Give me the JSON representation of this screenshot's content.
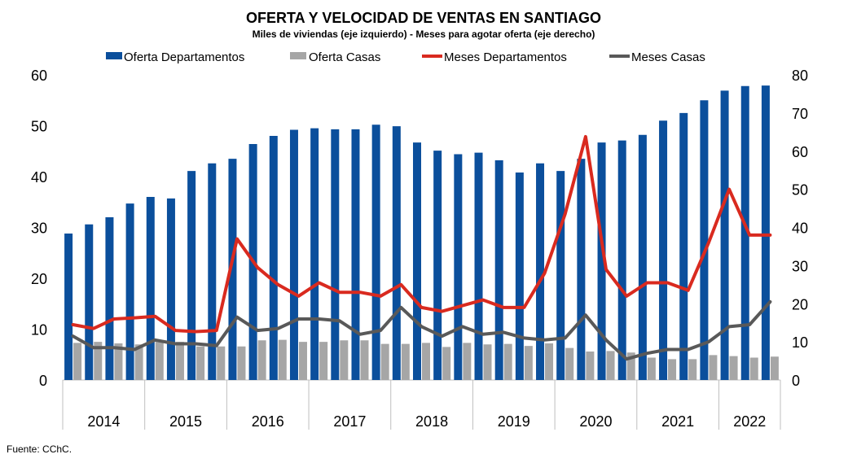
{
  "chart_data": {
    "type": "bar",
    "title": "OFERTA Y VELOCIDAD DE VENTAS EN SANTIAGO",
    "subtitle": "Miles de viviendas (eje izquierdo) - Meses para agotar oferta (eje derecho)",
    "source": "Fuente: CChC.",
    "colors": {
      "oferta_departamentos": "#0b4f9c",
      "oferta_casas": "#a6a6a6",
      "meses_departamentos": "#d92a1f",
      "meses_casas": "#595959"
    },
    "y_left": {
      "min": 0,
      "max": 60,
      "ticks": [
        "0",
        "10",
        "20",
        "30",
        "40",
        "50",
        "60"
      ]
    },
    "y_right": {
      "min": 0,
      "max": 80,
      "ticks": [
        "0",
        "10",
        "20",
        "30",
        "40",
        "50",
        "60",
        "70",
        "80"
      ]
    },
    "years": [
      {
        "label": "2014",
        "quarters": 4
      },
      {
        "label": "2015",
        "quarters": 4
      },
      {
        "label": "2016",
        "quarters": 4
      },
      {
        "label": "2017",
        "quarters": 4
      },
      {
        "label": "2018",
        "quarters": 4
      },
      {
        "label": "2019",
        "quarters": 4
      },
      {
        "label": "2020",
        "quarters": 4
      },
      {
        "label": "2021",
        "quarters": 4
      },
      {
        "label": "2022",
        "quarters": 3
      }
    ],
    "legend_position": "top",
    "grid": false,
    "series": [
      {
        "name": "Oferta Departamentos",
        "type": "bar",
        "axis": "left",
        "values": [
          28.8,
          30.6,
          32.0,
          34.7,
          36.0,
          35.7,
          41.1,
          42.6,
          43.5,
          46.4,
          48.0,
          49.2,
          49.5,
          49.3,
          49.3,
          50.2,
          49.9,
          46.7,
          45.1,
          44.4,
          44.7,
          43.2,
          40.8,
          42.6,
          41.1,
          43.5,
          46.7,
          47.1,
          48.2,
          51.0,
          52.5,
          55.0,
          56.9,
          57.8,
          57.9
        ]
      },
      {
        "name": "Oferta Casas",
        "type": "bar",
        "axis": "left",
        "values": [
          7.3,
          7.5,
          7.2,
          7.0,
          7.5,
          7.5,
          6.6,
          6.6,
          6.6,
          7.8,
          7.9,
          7.5,
          7.5,
          7.8,
          7.8,
          7.1,
          7.1,
          7.3,
          6.5,
          7.3,
          7.0,
          7.1,
          6.7,
          7.2,
          6.3,
          5.6,
          5.7,
          5.4,
          4.4,
          4.1,
          4.1,
          4.9,
          4.7,
          4.4,
          4.6
        ]
      },
      {
        "name": "Meses Departamentos",
        "type": "line",
        "axis": "right",
        "values": [
          14.5,
          13.5,
          16.0,
          16.3,
          16.7,
          13.0,
          12.7,
          13.0,
          37.0,
          29.5,
          25.0,
          22.0,
          25.5,
          23.0,
          23.0,
          22.0,
          25.0,
          19.0,
          18.0,
          19.5,
          21.0,
          19.0,
          19.0,
          28.0,
          43.5,
          63.8,
          29.0,
          22.0,
          25.5,
          25.5,
          23.5,
          36.0,
          50.0,
          38.0,
          38.0
        ]
      },
      {
        "name": "Meses Casas",
        "type": "line",
        "axis": "right",
        "values": [
          11.5,
          8.5,
          8.5,
          8.0,
          10.5,
          9.5,
          9.5,
          9.0,
          16.5,
          13.0,
          13.5,
          16.0,
          16.0,
          15.5,
          12.0,
          13.0,
          19.0,
          14.0,
          11.5,
          14.0,
          12.0,
          12.5,
          11.0,
          10.5,
          11.0,
          17.0,
          10.5,
          5.5,
          7.0,
          8.0,
          8.0,
          10.0,
          14.0,
          14.5,
          20.5
        ]
      }
    ]
  }
}
